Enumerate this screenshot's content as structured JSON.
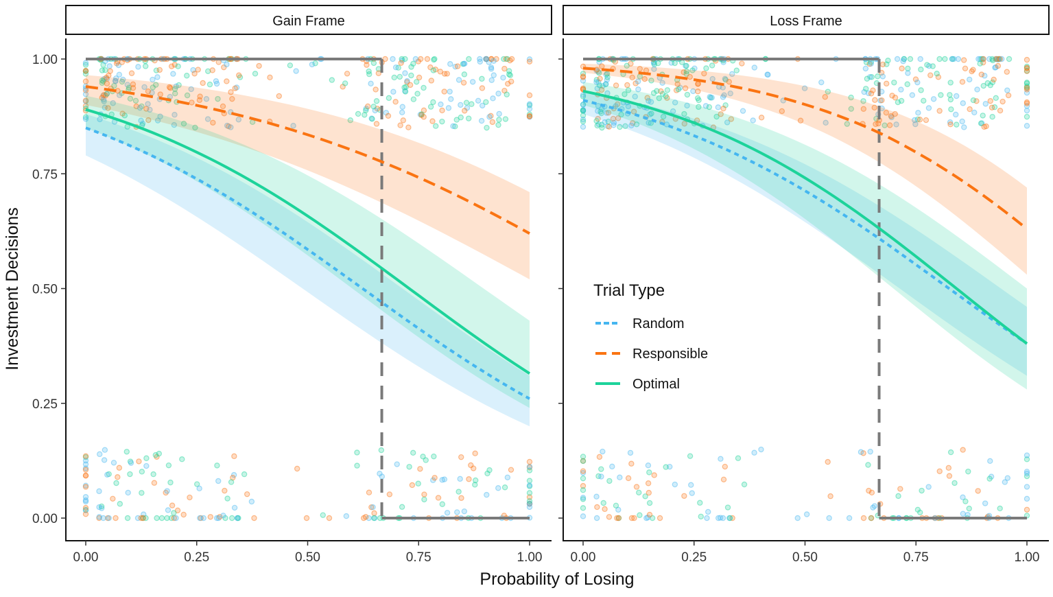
{
  "chart_data": {
    "type": "line",
    "xlabel": "Probability of Losing",
    "ylabel": "Investment Decisions",
    "xlim": [
      0,
      1
    ],
    "ylim": [
      0,
      1
    ],
    "x_ticks": [
      "0.00",
      "0.25",
      "0.50",
      "0.75",
      "1.00"
    ],
    "y_ticks": [
      "0.00",
      "0.25",
      "0.50",
      "0.75",
      "1.00"
    ],
    "x_tick_values": [
      0,
      0.25,
      0.5,
      0.75,
      1
    ],
    "y_tick_values": [
      0,
      0.25,
      0.5,
      0.75,
      1
    ],
    "grid": false,
    "optimal_threshold": 0.667,
    "legend": {
      "title": "Trial Type",
      "placement": "inside-right-panel-left",
      "entries": [
        "Random",
        "Responsible",
        "Optimal"
      ]
    },
    "colors": {
      "Random": "#45b6f0",
      "Responsible": "#fa7412",
      "Optimal": "#1dd39a",
      "reference": "#7a7a7a"
    },
    "x": [
      0,
      0.25,
      0.5,
      0.67,
      0.75,
      1
    ],
    "panels": [
      {
        "title": "Gain Frame",
        "series": [
          {
            "name": "Random",
            "values": [
              0.85,
              0.739,
              0.585,
              0.468,
              0.413,
              0.26
            ],
            "ci_lower": [
              0.79,
              0.2
            ],
            "ci_upper": [
              0.88,
              0.31
            ]
          },
          {
            "name": "Responsible",
            "values": [
              0.94,
              0.899,
              0.835,
              0.775,
              0.742,
              0.62
            ],
            "ci_lower": [
              0.9,
              0.52
            ],
            "ci_upper": [
              0.965,
              0.71
            ]
          },
          {
            "name": "Optimal",
            "values": [
              0.89,
              0.797,
              0.658,
              0.542,
              0.485,
              0.315
            ],
            "ci_lower": [
              0.85,
              0.24
            ],
            "ci_upper": [
              0.92,
              0.43
            ]
          }
        ]
      },
      {
        "title": "Loss Frame",
        "series": [
          {
            "name": "Random",
            "values": [
              0.91,
              0.833,
              0.713,
              0.607,
              0.552,
              0.38
            ],
            "ci_lower": [
              0.88,
              0.31
            ],
            "ci_upper": [
              0.93,
              0.46
            ]
          },
          {
            "name": "Responsible",
            "values": [
              0.98,
              0.955,
              0.901,
              0.838,
              0.797,
              0.63
            ],
            "ci_lower": [
              0.97,
              0.53
            ],
            "ci_upper": [
              0.99,
              0.72
            ]
          },
          {
            "name": "Optimal",
            "values": [
              0.93,
              0.861,
              0.741,
              0.629,
              0.57,
              0.38
            ],
            "ci_lower": [
              0.9,
              0.28
            ],
            "ci_upper": [
              0.95,
              0.5
            ]
          }
        ]
      }
    ]
  }
}
